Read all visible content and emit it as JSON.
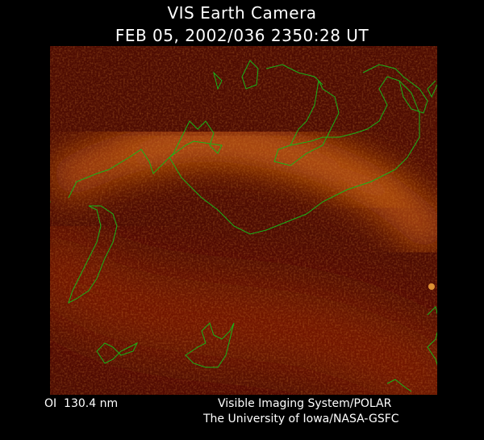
{
  "title": "VIS Earth Camera",
  "timestamp": "FEB 05, 2002/036 2350:28 UT",
  "wavelength": "OI  130.4 nm",
  "credit_line1": "Visible Imaging System/POLAR",
  "credit_line2": "The University of Iowa/NASA-GSFC",
  "colors": {
    "background": "#000000",
    "image_base": "#5a0e02",
    "aurora": "#d86a10",
    "coastline": "#19b419",
    "text": "#ffffff"
  }
}
